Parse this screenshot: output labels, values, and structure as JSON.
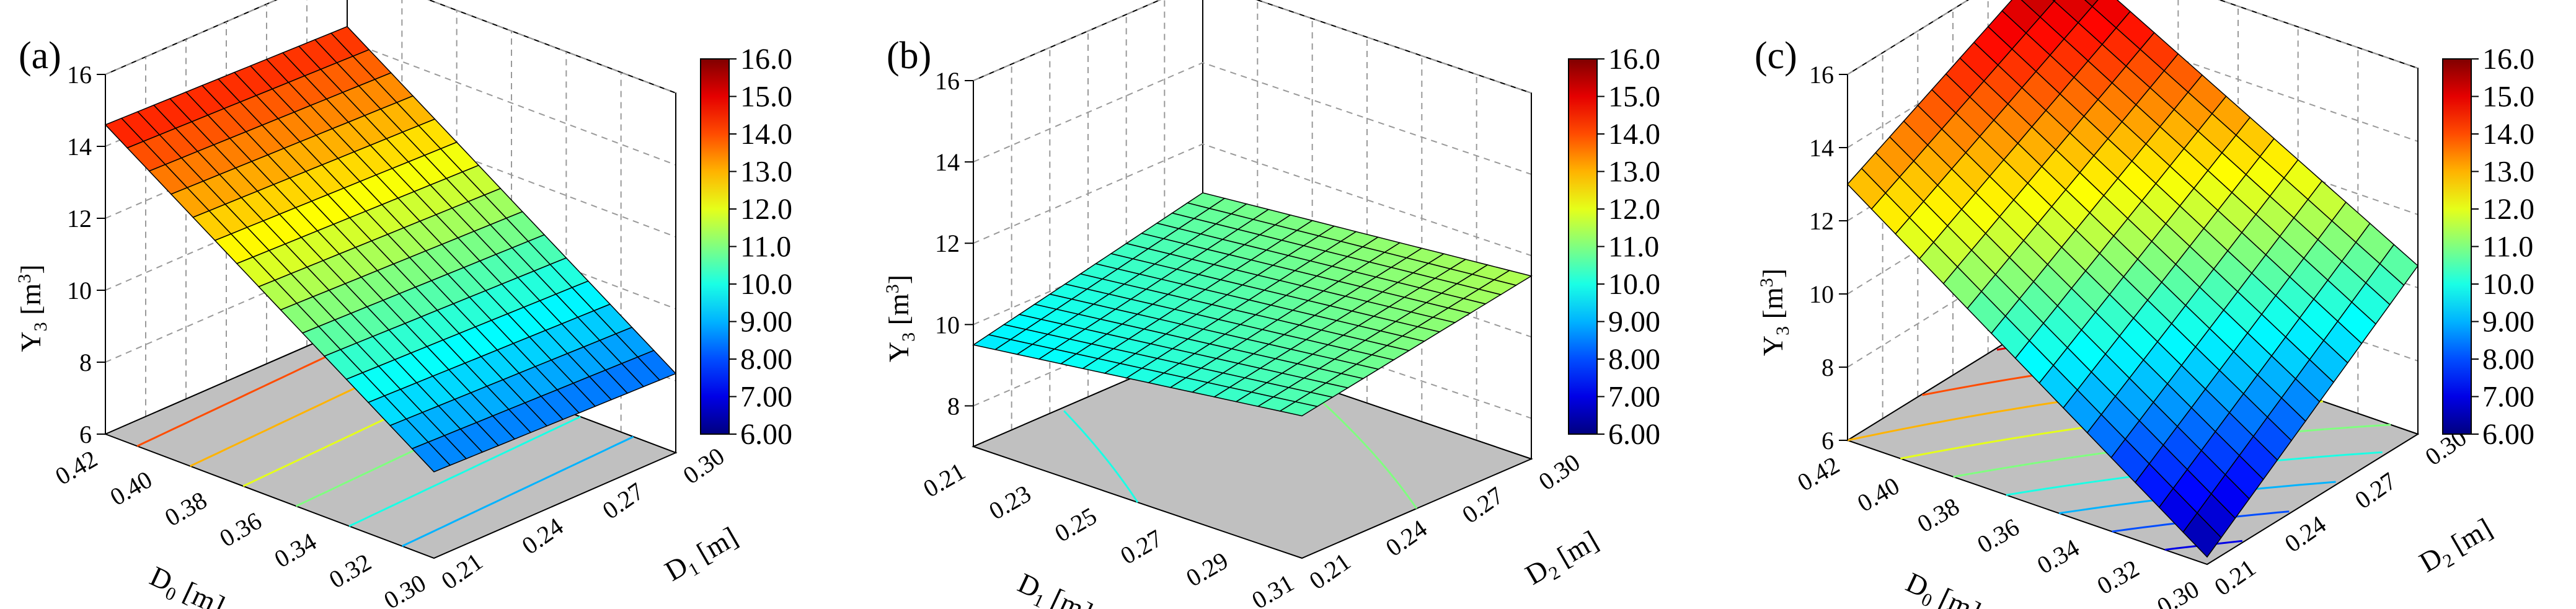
{
  "chart_data": [
    {
      "type": "surface3d",
      "panel_label": "(a)",
      "z_label_main": "Y",
      "z_label_sub": "3",
      "z_label_unit": "[m",
      "z_label_sup": "3",
      "z_label_close": "]",
      "x_label_main": "D",
      "x_label_sub": "0",
      "x_label_unit": "[m]",
      "y_label_main": "D",
      "y_label_sub": "1",
      "y_label_unit": "[m]",
      "x_ticks": [
        "0.42",
        "0.40",
        "0.38",
        "0.36",
        "0.34",
        "0.32",
        "0.30"
      ],
      "y_ticks": [
        "0.21",
        "0.24",
        "0.27",
        "0.30"
      ],
      "z_ticks": [
        "6",
        "8",
        "10",
        "12",
        "14",
        "16"
      ],
      "xlim": [
        0.42,
        0.3
      ],
      "ylim": [
        0.21,
        0.31
      ],
      "zlim": [
        6,
        16
      ],
      "corners_z": {
        "x_min_y_min": 14.6,
        "x_min_y_max": 14.4,
        "x_max_y_min": 8.4,
        "x_max_y_max": 8.2
      },
      "colorbar": {
        "min": 6,
        "max": 16,
        "ticks": [
          "16.0",
          "15.0",
          "14.0",
          "13.0",
          "12.0",
          "11.0",
          "10.0",
          "9.00",
          "8.00",
          "7.00",
          "6.00"
        ]
      }
    },
    {
      "type": "surface3d",
      "panel_label": "(b)",
      "z_label_main": "Y",
      "z_label_sub": "3",
      "z_label_unit": "[m",
      "z_label_sup": "3",
      "z_label_close": "]",
      "x_label_main": "D",
      "x_label_sub": "1",
      "x_label_unit": "[m]",
      "y_label_main": "D",
      "y_label_sub": "2",
      "y_label_unit": "[m]",
      "x_ticks": [
        "0.21",
        "0.23",
        "0.25",
        "0.27",
        "0.29",
        "0.31"
      ],
      "y_ticks": [
        "0.21",
        "0.24",
        "0.27",
        "0.30"
      ],
      "z_ticks": [
        "8",
        "10",
        "12",
        "14",
        "16"
      ],
      "xlim": [
        0.21,
        0.31
      ],
      "ylim": [
        0.21,
        0.31
      ],
      "zlim": [
        7,
        16
      ],
      "corners_z": {
        "x_min_y_min": 9.5,
        "x_min_y_max": 10.8,
        "x_max_y_min": 10.5,
        "x_max_y_max": 11.5
      },
      "colorbar": {
        "min": 6,
        "max": 16,
        "ticks": [
          "16.0",
          "15.0",
          "14.0",
          "13.0",
          "12.0",
          "11.0",
          "10.0",
          "9.00",
          "8.00",
          "7.00",
          "6.00"
        ]
      }
    },
    {
      "type": "surface3d",
      "panel_label": "(c)",
      "z_label_main": "Y",
      "z_label_sub": "3",
      "z_label_unit": "[m",
      "z_label_sup": "3",
      "z_label_close": "]",
      "x_label_main": "D",
      "x_label_sub": "0",
      "x_label_unit": "[m]",
      "y_label_main": "D",
      "y_label_sub": "2",
      "y_label_unit": "[m]",
      "x_ticks": [
        "0.42",
        "0.40",
        "0.38",
        "0.36",
        "0.34",
        "0.32",
        "0.30"
      ],
      "y_ticks": [
        "0.21",
        "0.24",
        "0.27",
        "0.30"
      ],
      "z_ticks": [
        "6",
        "8",
        "10",
        "12",
        "14",
        "16"
      ],
      "xlim": [
        0.42,
        0.3
      ],
      "ylim": [
        0.21,
        0.31
      ],
      "zlim": [
        6,
        16
      ],
      "corners_z": {
        "x_min_y_min": 13.0,
        "x_min_y_max": 15.9,
        "x_max_y_min": 6.2,
        "x_max_y_max": 10.6
      },
      "colorbar": {
        "min": 6,
        "max": 16,
        "ticks": [
          "16.0",
          "15.0",
          "14.0",
          "13.0",
          "12.0",
          "11.0",
          "10.0",
          "9.00",
          "8.00",
          "7.00",
          "6.00"
        ]
      }
    }
  ]
}
